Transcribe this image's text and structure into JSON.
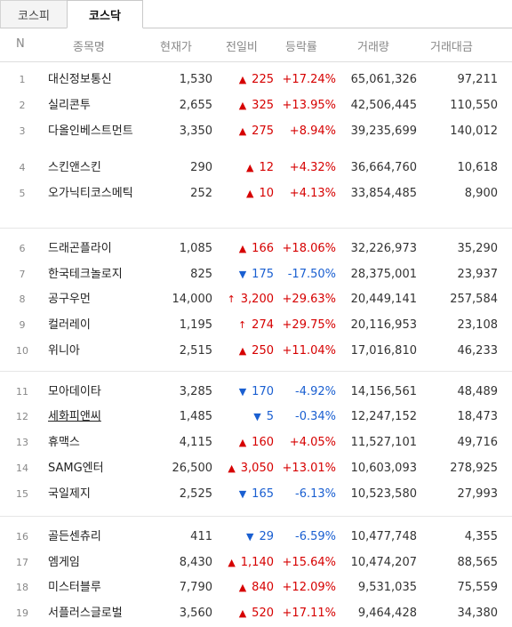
{
  "tabs": [
    {
      "label": "코스피"
    },
    {
      "label": "코스닥"
    }
  ],
  "columns": {
    "n": "N",
    "name": "종목명",
    "price": "현재가",
    "change": "전일비",
    "rate": "등락률",
    "volume": "거래량",
    "amount": "거래대금"
  },
  "rows": [
    {
      "n": "1",
      "name": "대신정보통신",
      "price": "1,530",
      "dir": "up",
      "arrow": "▲",
      "change": "225",
      "rate": "+17.24%",
      "volume": "65,061,326",
      "amount": "97,211"
    },
    {
      "n": "2",
      "name": "실리콘투",
      "price": "2,655",
      "dir": "up",
      "arrow": "▲",
      "change": "325",
      "rate": "+13.95%",
      "volume": "42,506,445",
      "amount": "110,550"
    },
    {
      "n": "3",
      "name": "다올인베스트먼트",
      "price": "3,350",
      "dir": "up",
      "arrow": "▲",
      "change": "275",
      "rate": "+8.94%",
      "volume": "39,235,699",
      "amount": "140,012"
    },
    {
      "n": "4",
      "name": "스킨앤스킨",
      "price": "290",
      "dir": "up",
      "arrow": "▲",
      "change": "12",
      "rate": "+4.32%",
      "volume": "36,664,760",
      "amount": "10,618"
    },
    {
      "n": "5",
      "name": "오가닉티코스메틱",
      "price": "252",
      "dir": "up",
      "arrow": "▲",
      "change": "10",
      "rate": "+4.13%",
      "volume": "33,854,485",
      "amount": "8,900"
    },
    {
      "n": "6",
      "name": "드래곤플라이",
      "price": "1,085",
      "dir": "up",
      "arrow": "▲",
      "change": "166",
      "rate": "+18.06%",
      "volume": "32,226,973",
      "amount": "35,290"
    },
    {
      "n": "7",
      "name": "한국테크놀로지",
      "price": "825",
      "dir": "down",
      "arrow": "▼",
      "change": "175",
      "rate": "-17.50%",
      "volume": "28,375,001",
      "amount": "23,937"
    },
    {
      "n": "8",
      "name": "공구우먼",
      "price": "14,000",
      "dir": "up",
      "arrow": "↑",
      "change": "3,200",
      "rate": "+29.63%",
      "volume": "20,449,141",
      "amount": "257,584"
    },
    {
      "n": "9",
      "name": "컬러레이",
      "price": "1,195",
      "dir": "up",
      "arrow": "↑",
      "change": "274",
      "rate": "+29.75%",
      "volume": "20,116,953",
      "amount": "23,108"
    },
    {
      "n": "10",
      "name": "위니아",
      "price": "2,515",
      "dir": "up",
      "arrow": "▲",
      "change": "250",
      "rate": "+11.04%",
      "volume": "17,016,810",
      "amount": "46,233"
    },
    {
      "n": "11",
      "name": "모아데이타",
      "price": "3,285",
      "dir": "down",
      "arrow": "▼",
      "change": "170",
      "rate": "-4.92%",
      "volume": "14,156,561",
      "amount": "48,489"
    },
    {
      "n": "12",
      "name": "세화피앤씨",
      "price": "1,485",
      "dir": "down",
      "arrow": "▼",
      "change": "5",
      "rate": "-0.34%",
      "volume": "12,247,152",
      "amount": "18,473"
    },
    {
      "n": "13",
      "name": "휴맥스",
      "price": "4,115",
      "dir": "up",
      "arrow": "▲",
      "change": "160",
      "rate": "+4.05%",
      "volume": "11,527,101",
      "amount": "49,716"
    },
    {
      "n": "14",
      "name": "SAMG엔터",
      "price": "26,500",
      "dir": "up",
      "arrow": "▲",
      "change": "3,050",
      "rate": "+13.01%",
      "volume": "10,603,093",
      "amount": "278,925"
    },
    {
      "n": "15",
      "name": "국일제지",
      "price": "2,525",
      "dir": "down",
      "arrow": "▼",
      "change": "165",
      "rate": "-6.13%",
      "volume": "10,523,580",
      "amount": "27,993"
    },
    {
      "n": "16",
      "name": "골든센츄리",
      "price": "411",
      "dir": "down",
      "arrow": "▼",
      "change": "29",
      "rate": "-6.59%",
      "volume": "10,477,748",
      "amount": "4,355"
    },
    {
      "n": "17",
      "name": "엠게임",
      "price": "8,430",
      "dir": "up",
      "arrow": "▲",
      "change": "1,140",
      "rate": "+15.64%",
      "volume": "10,474,207",
      "amount": "88,565"
    },
    {
      "n": "18",
      "name": "미스터블루",
      "price": "7,790",
      "dir": "up",
      "arrow": "▲",
      "change": "840",
      "rate": "+12.09%",
      "volume": "9,531,035",
      "amount": "75,559"
    },
    {
      "n": "19",
      "name": "서플러스글로벌",
      "price": "3,560",
      "dir": "up",
      "arrow": "▲",
      "change": "520",
      "rate": "+17.11%",
      "volume": "9,464,428",
      "amount": "34,380"
    }
  ]
}
